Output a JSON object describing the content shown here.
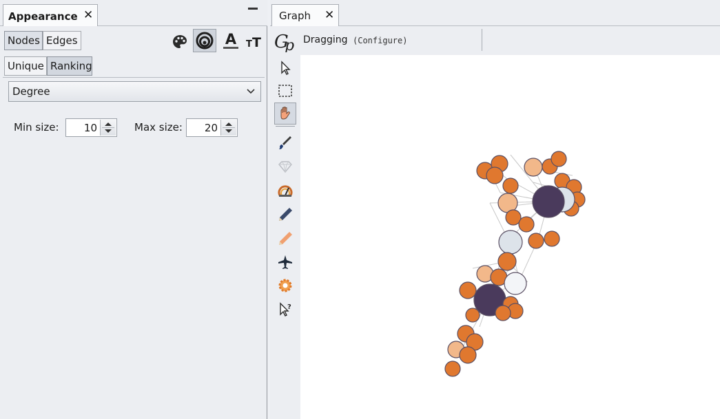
{
  "appearance": {
    "title": "Appearance",
    "close_glyph": "✕",
    "element_tabs": [
      "Nodes",
      "Edges"
    ],
    "property_icons": [
      "palette-icon",
      "size-icon",
      "label-color-icon",
      "label-size-icon"
    ],
    "mode_tabs": [
      "Unique",
      "Ranking"
    ],
    "attribute": "Degree",
    "min_size_label": "Min size:",
    "min_size": "10",
    "max_size_label": "Max size:",
    "max_size": "20"
  },
  "graph": {
    "tab_title": "Graph",
    "close_glyph": "✕",
    "mode_label": "Dragging",
    "configure_label": "(Configure)",
    "tools": [
      "direct-selection-icon",
      "rectangle-selection-icon",
      "drag-icon",
      "painter-icon",
      "size-modifier-icon",
      "heatmap-icon",
      "edge-pencil-icon",
      "node-pencil-icon",
      "shortest-path-icon",
      "diffusion-icon",
      "edit-help-icon"
    ],
    "colors": {
      "node_orange": "#e0782f",
      "node_light_orange": "#f2b88a",
      "node_grey_blue": "#dde3ea",
      "node_dark_purple": "#4a3a5c",
      "node_stroke": "#5a4f63",
      "edge": "#c7c7c7"
    }
  }
}
